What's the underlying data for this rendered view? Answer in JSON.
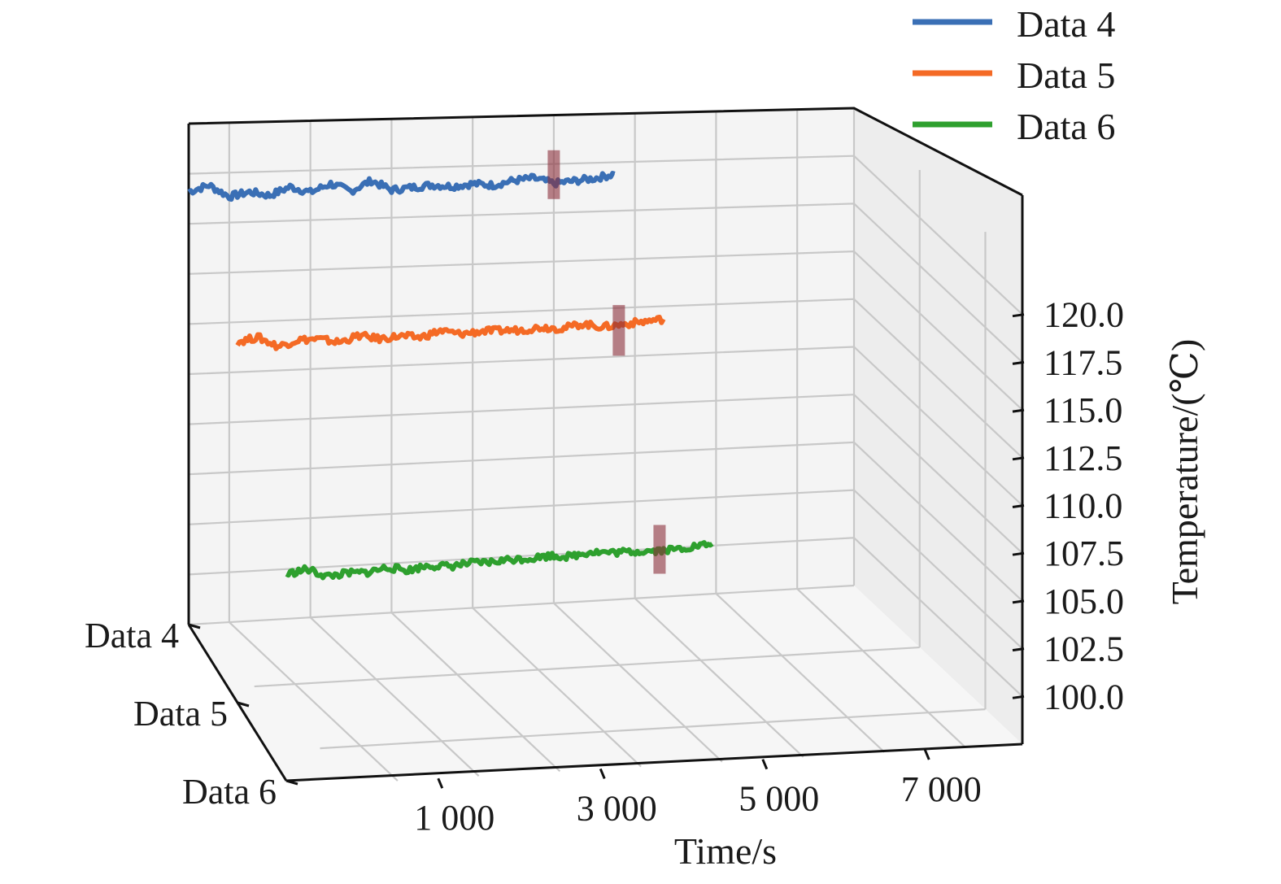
{
  "chart_data": {
    "type": "line",
    "projection": "3d",
    "xlabel": "Time/s",
    "zlabel": "Temperature/(℃)",
    "xlim": [
      0,
      7000
    ],
    "zlim": [
      100,
      120
    ],
    "x_ticks": [
      {
        "value": 1000,
        "label": "1 000"
      },
      {
        "value": 3000,
        "label": "3 000"
      },
      {
        "value": 5000,
        "label": "5 000"
      },
      {
        "value": 7000,
        "label": "7 000"
      }
    ],
    "z_ticks": [
      {
        "value": 100,
        "label": "100.0"
      },
      {
        "value": 102.5,
        "label": "102.5"
      },
      {
        "value": 105,
        "label": "105.0"
      },
      {
        "value": 107.5,
        "label": "107.5"
      },
      {
        "value": 110,
        "label": "110.0"
      },
      {
        "value": 112.5,
        "label": "112.5"
      },
      {
        "value": 115,
        "label": "115.0"
      },
      {
        "value": 117.5,
        "label": "117.5"
      },
      {
        "value": 120,
        "label": "120.0"
      }
    ],
    "y_categories": [
      "Data 4",
      "Data 5",
      "Data 6"
    ],
    "legend": {
      "placement": "top-right"
    },
    "grid": true,
    "series": [
      {
        "name": "Data 4",
        "color": "#3a6fb5",
        "x": [
          0,
          250,
          500,
          750,
          1000,
          1250,
          1500,
          1750,
          2000,
          2250,
          2500,
          2750,
          3000,
          3250,
          3500,
          3750,
          4000,
          4250,
          4500,
          4750,
          5000,
          5250
        ],
        "y": [
          119.1,
          119.4,
          118.8,
          119.0,
          118.8,
          119.2,
          118.9,
          119.3,
          118.9,
          119.4,
          118.9,
          119.0,
          119.1,
          119.0,
          119.1,
          119.0,
          119.2,
          119.3,
          119.0,
          119.1,
          119.2,
          119.4
        ],
        "marker_x": 4500,
        "marker_range": [
          118.2,
          120.7
        ]
      },
      {
        "name": "Data 5",
        "color": "#f46a25",
        "x": [
          0,
          250,
          500,
          750,
          1000,
          1250,
          1500,
          1750,
          2000,
          2250,
          2500,
          2750,
          3000,
          3250,
          3500,
          3750,
          4000,
          4250,
          4500,
          4750,
          5000,
          5250
        ],
        "y": [
          113.9,
          114.1,
          113.6,
          113.9,
          113.9,
          113.7,
          114.0,
          113.8,
          113.9,
          113.8,
          114.1,
          113.9,
          114.0,
          114.0,
          114.0,
          114.1,
          114.0,
          114.2,
          114.0,
          114.1,
          114.2,
          114.3
        ],
        "marker_x": 4700,
        "marker_range": [
          112.5,
          115.1
        ]
      },
      {
        "name": "Data 6",
        "color": "#2ea02e",
        "x": [
          0,
          250,
          500,
          750,
          1000,
          1250,
          1500,
          1750,
          2000,
          2250,
          2500,
          2750,
          3000,
          3250,
          3500,
          3750,
          4000,
          4250,
          4500,
          4750,
          5000,
          5250
        ],
        "y": [
          104.6,
          104.8,
          104.4,
          104.5,
          104.5,
          104.7,
          104.5,
          104.7,
          104.6,
          104.7,
          104.7,
          104.8,
          104.8,
          104.9,
          104.8,
          105.0,
          104.9,
          104.9,
          104.9,
          104.9,
          105.0,
          105.1
        ],
        "marker_x": 4600,
        "marker_range": [
          103.7,
          106.2
        ]
      }
    ]
  }
}
